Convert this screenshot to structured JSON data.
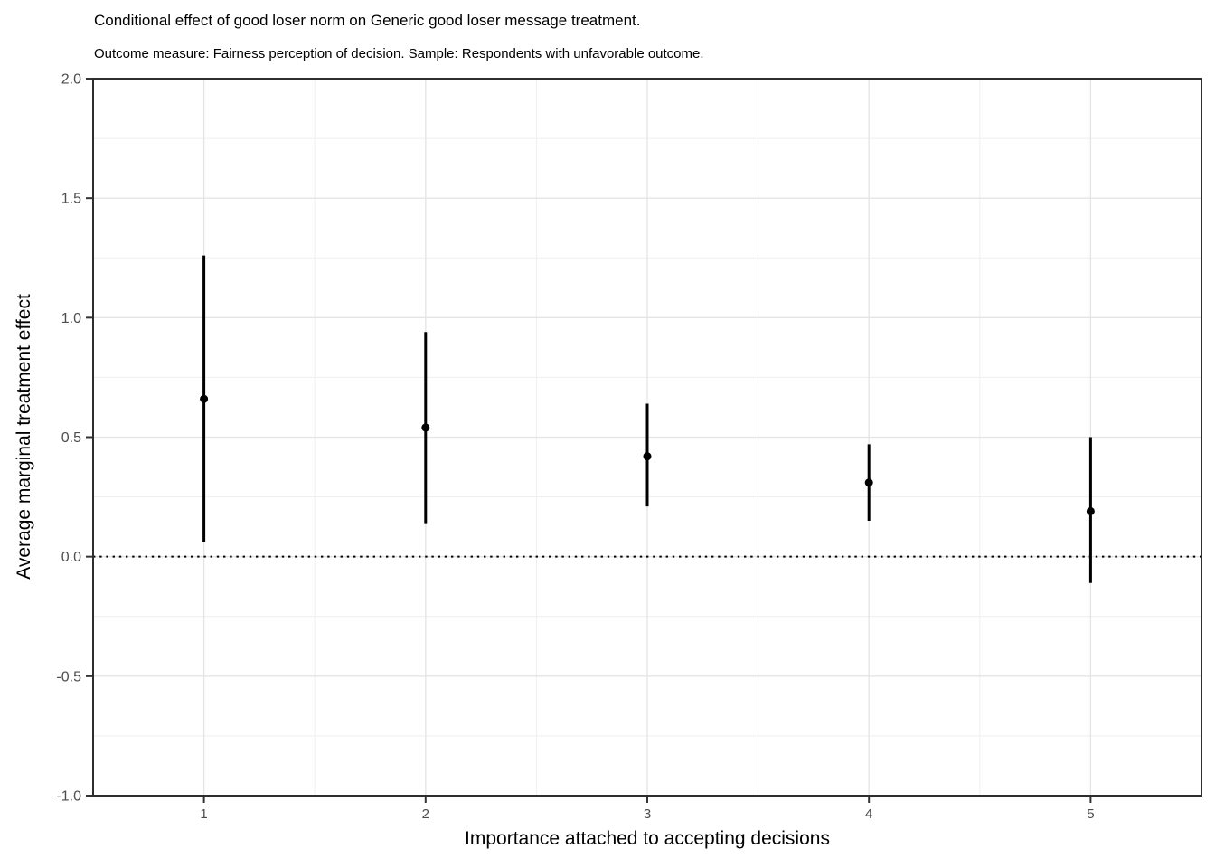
{
  "chart": {
    "title": "Conditional effect of good loser norm on Generic good loser message treatment.",
    "subtitle": "Outcome measure: Fairness perception of decision. Sample: Respondents with unfavorable outcome.",
    "xlabel": "Importance attached to accepting decisions",
    "ylabel": "Average marginal treatment effect"
  },
  "chart_data": {
    "type": "scatter",
    "subtype": "pointrange",
    "title": "Conditional effect of good loser norm on Generic good loser message treatment.",
    "subtitle": "Outcome measure: Fairness perception of decision. Sample: Respondents with unfavorable outcome.",
    "xlabel": "Importance attached to accepting decisions",
    "ylabel": "Average marginal treatment effect",
    "x": [
      1,
      2,
      3,
      4,
      5
    ],
    "series": [
      {
        "name": "Average marginal treatment effect",
        "estimates": [
          0.66,
          0.54,
          0.42,
          0.31,
          0.19
        ],
        "ci_low": [
          0.06,
          0.14,
          0.21,
          0.15,
          -0.11
        ],
        "ci_high": [
          1.26,
          0.94,
          0.64,
          0.47,
          0.5
        ]
      }
    ],
    "xlim": [
      0.5,
      5.5
    ],
    "ylim": [
      -1.0,
      2.0
    ],
    "x_ticks": [
      1,
      2,
      3,
      4,
      5
    ],
    "x_tick_labels": [
      "1",
      "2",
      "3",
      "4",
      "5"
    ],
    "y_ticks": [
      2.0,
      1.5,
      1.0,
      0.5,
      0.0,
      -0.5,
      -1.0
    ],
    "y_tick_labels": [
      "2.0",
      "1.5",
      "1.0",
      "0.5",
      "0.0",
      "-0.5",
      "-1.0"
    ],
    "reference_line": {
      "y": 0,
      "linetype": "dotted",
      "color": "#000000"
    },
    "grid": {
      "major": true,
      "minor": true,
      "major_color": "#e4e4e4",
      "minor_color": "#efefef"
    },
    "legend_position": "none",
    "colors": {
      "point": "#000000",
      "interval": "#000000",
      "panel_border": "#2e2e2e",
      "axis_text": "#4d4d4d",
      "tick_mark": "#333333",
      "background": "#ffffff"
    }
  }
}
